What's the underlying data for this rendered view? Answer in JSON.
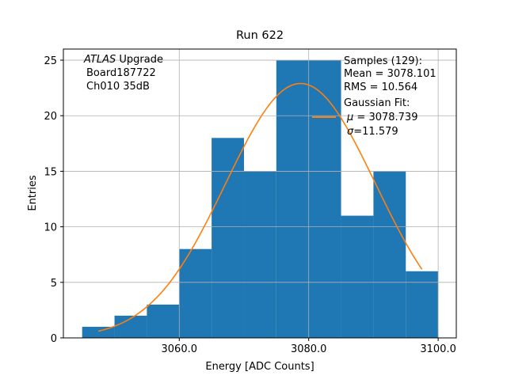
{
  "chart_data": {
    "type": "bar",
    "subtype": "histogram",
    "title": "Run 622",
    "xlabel": "Energy [ADC Counts]",
    "ylabel": "Entries",
    "xlim": [
      3042.1,
      3102.8
    ],
    "ylim": [
      0,
      26.0
    ],
    "grid": true,
    "bin_edges": [
      3045,
      3050,
      3055,
      3060,
      3065,
      3070,
      3075,
      3080,
      3085,
      3090,
      3095,
      3100
    ],
    "values": [
      1,
      2,
      3,
      8,
      18,
      15,
      25,
      25,
      11,
      15,
      6
    ],
    "bar_color": "#1f77b4",
    "xticks": [
      3060.0,
      3080.0,
      3100.0
    ],
    "xtick_labels": [
      "3060.0",
      "3080.0",
      "3100.0"
    ],
    "yticks": [
      0,
      5,
      10,
      15,
      20,
      25
    ],
    "ytick_labels": [
      "0",
      "5",
      "10",
      "15",
      "20",
      "25"
    ],
    "fit": {
      "name": "Gaussian Fit",
      "color": "#ff7f0e",
      "mu": 3078.739,
      "sigma": 11.579,
      "amplitude": 22.9,
      "x_range": [
        3047.5,
        3097.5
      ]
    },
    "annotation": {
      "line1_italic": "ATLAS",
      "line1_rest": " Upgrade",
      "line2": "Board187722",
      "line3": "Ch010 35dB"
    },
    "legend": {
      "placement": "top-right",
      "lines": [
        "Samples (129):",
        " Mean = 3078.101",
        " RMS = 10.564",
        "Gaussian Fit:"
      ],
      "mu_symbol": "μ",
      "mu_text": " = 3078.739",
      "sigma_symbol": "σ",
      "sigma_text": "=11.579"
    }
  }
}
